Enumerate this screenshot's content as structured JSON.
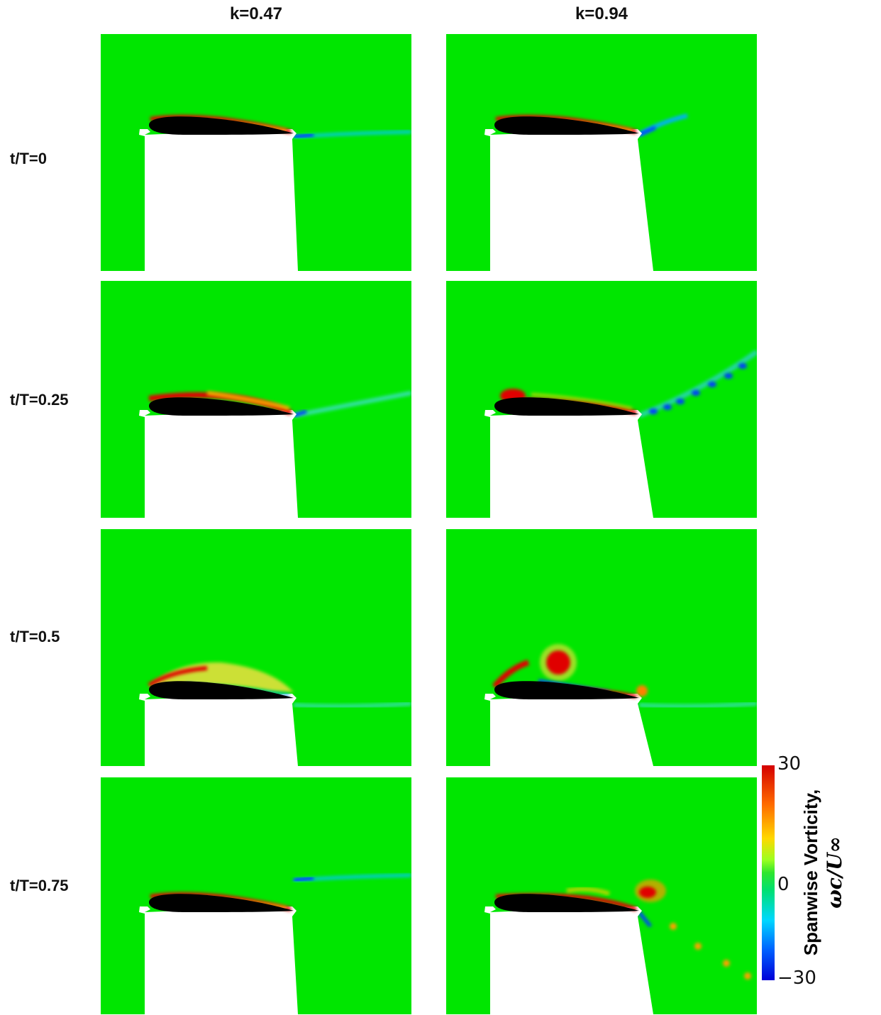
{
  "chart_data": {
    "type": "heatmap",
    "columns": [
      "k=0.47",
      "k=0.94"
    ],
    "rows": [
      "t/T=0",
      "t/T=0.25",
      "t/T=0.5",
      "t/T=0.75"
    ],
    "colorbar": {
      "label_line1": "Spanwise Vorticity,",
      "label_line2": "ωc/U∞",
      "max": "30",
      "mid": "0",
      "min": "−30",
      "range": [
        -30,
        30
      ],
      "colormap": "jet"
    }
  },
  "colors": {
    "background": "#00e600",
    "mask": "#ffffff",
    "airfoil": "#000000",
    "positive": "#e00000",
    "negative": "#0040ff"
  }
}
